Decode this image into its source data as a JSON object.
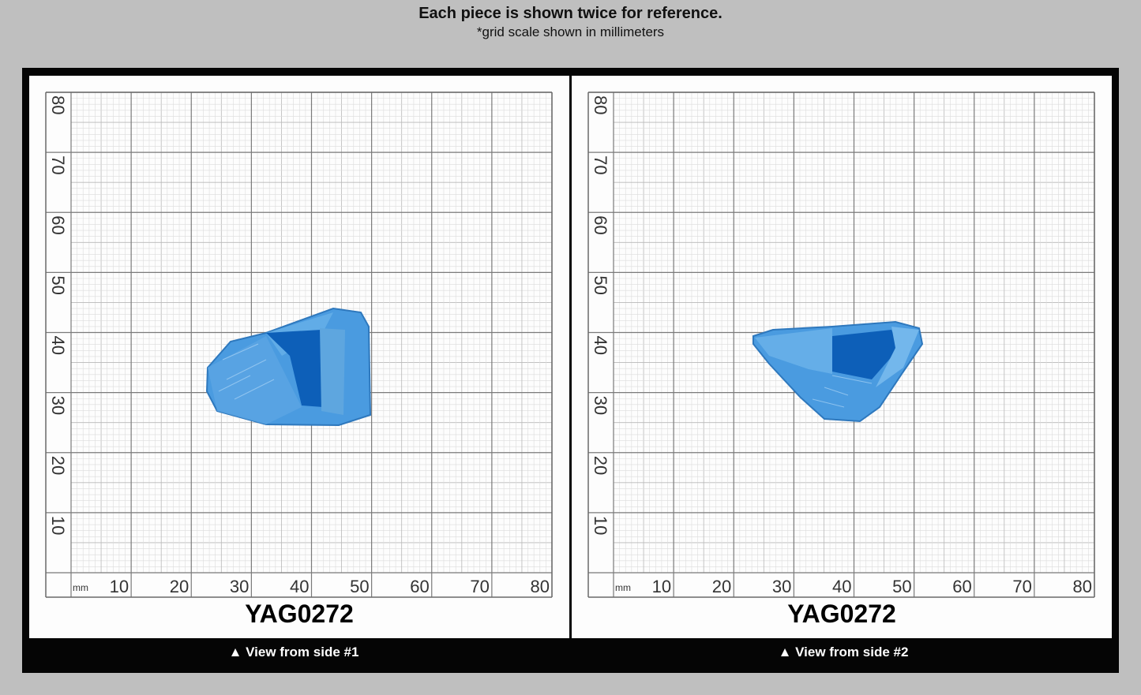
{
  "header": {
    "title": "Each piece is shown twice for reference.",
    "subtitle": "*grid scale shown in millimeters"
  },
  "colors": {
    "background": "#bfbfbf",
    "frame": "#050505",
    "gem_blue": "#3a8fd4",
    "grid_major": "#7a7a7a",
    "grid_minor": "#cfcfcf"
  },
  "panels": [
    {
      "piece_id": "YAG0272",
      "caption": "▲ View from side #1",
      "unit_label": "mm",
      "x_ticks": [
        "10",
        "20",
        "30",
        "40",
        "50",
        "60",
        "70",
        "80"
      ],
      "y_ticks": [
        "80",
        "70",
        "60",
        "50",
        "40",
        "30",
        "20",
        "10"
      ]
    },
    {
      "piece_id": "YAG0272",
      "caption": "▲ View from side #2",
      "unit_label": "mm",
      "x_ticks": [
        "10",
        "20",
        "30",
        "40",
        "50",
        "60",
        "70",
        "80"
      ],
      "y_ticks": [
        "80",
        "70",
        "60",
        "50",
        "40",
        "30",
        "20",
        "10"
      ]
    }
  ]
}
